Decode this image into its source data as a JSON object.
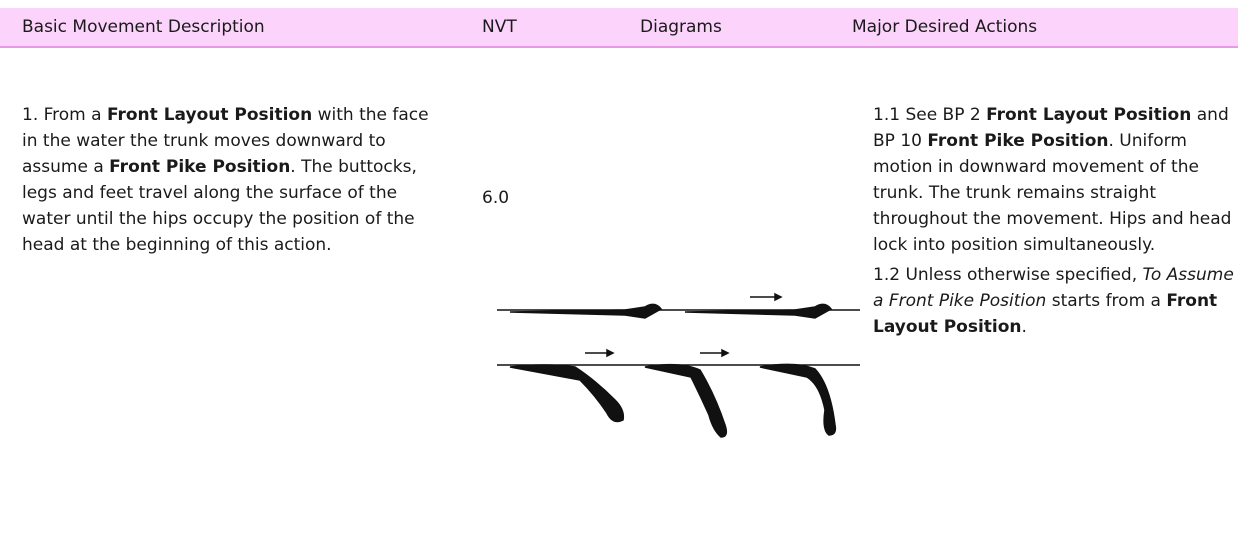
{
  "header": {
    "columns": [
      "Basic Movement Description",
      "NVT",
      "Diagrams",
      "Major Desired Actions"
    ]
  },
  "rows": [
    {
      "description": [
        {
          "text": "1. From a ",
          "style": "normal"
        },
        {
          "text": "Front Layout Position",
          "style": "bold"
        },
        {
          "text": " with the face in the water the trunk moves downward to assume a ",
          "style": "normal"
        },
        {
          "text": "Front Pike Position",
          "style": "bold"
        },
        {
          "text": ". The buttocks, legs and feet travel along the surface of the water until the hips occupy the position of the head at the beginning of this action.",
          "style": "normal"
        }
      ],
      "nvt": "6.0",
      "actions": [
        [
          {
            "text": "1.1 See BP 2 ",
            "style": "normal"
          },
          {
            "text": "Front Layout Position",
            "style": "bold"
          },
          {
            "text": " and BP 10 ",
            "style": "normal"
          },
          {
            "text": "Front Pike Position",
            "style": "bold"
          },
          {
            "text": ". Uniform motion in downward movement of the trunk. The trunk remains straight throughout the movement. Hips and head lock into position simultaneously.",
            "style": "normal"
          }
        ],
        [
          {
            "text": "1.2 Unless otherwise specified, ",
            "style": "normal"
          },
          {
            "text": "To Assume a Front Pike Position",
            "style": "italic"
          },
          {
            "text": " starts from a ",
            "style": "normal"
          },
          {
            "text": "Front Layout Position",
            "style": "bold"
          },
          {
            "text": ".",
            "style": "normal"
          }
        ]
      ]
    }
  ]
}
